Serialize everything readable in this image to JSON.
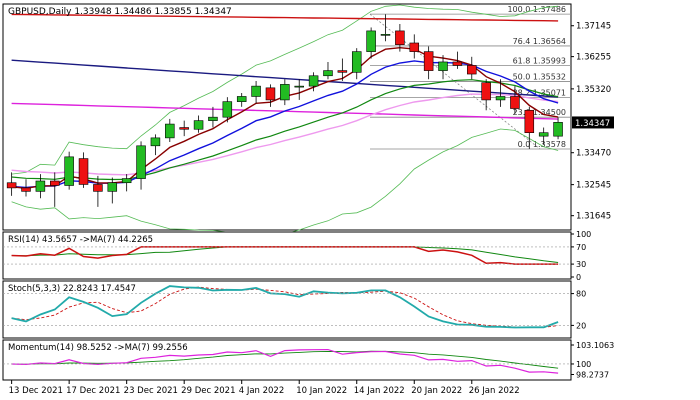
{
  "chart_data": {
    "type": "candlestick",
    "symbol_title": "GBPUSD,Daily",
    "ohlc_header": "1.33948 1.34486 1.33855 1.34347",
    "last_price_label": "1.34347",
    "x_labels": [
      "13 Dec 2021",
      "17 Dec 2021",
      "23 Dec 2021",
      "29 Dec 2021",
      "4 Jan 2022",
      "10 Jan 2022",
      "14 Jan 2022",
      "20 Jan 2022",
      "26 Jan 2022"
    ],
    "price_axis": {
      "ylim": [
        1.3123,
        1.3778
      ],
      "ticks": [
        {
          "v": 1.3715,
          "label": "1.37145"
        },
        {
          "v": 1.36255,
          "label": "1.36255"
        },
        {
          "v": 1.3532,
          "label": "1.35320"
        },
        {
          "v": 1.34347,
          "label": "1.34347"
        },
        {
          "v": 1.3347,
          "label": "1.33470"
        },
        {
          "v": 1.32545,
          "label": "1.32545"
        },
        {
          "v": 1.31645,
          "label": "1.31645"
        }
      ]
    },
    "fibonacci": [
      {
        "v": 1.37486,
        "label": "100.0 1.37486"
      },
      {
        "v": 1.36564,
        "label": "76.4 1.36564"
      },
      {
        "v": 1.35993,
        "label": "61.8 1.35993"
      },
      {
        "v": 1.35532,
        "label": "50.0 1.35532"
      },
      {
        "v": 1.35071,
        "label": "38.2 1.35071"
      },
      {
        "v": 1.345,
        "label": "23.6 1.34500"
      },
      {
        "v": 1.33578,
        "label": "0.0 1.33578"
      }
    ],
    "candles": [
      [
        1.326,
        1.329,
        1.3222,
        1.3245
      ],
      [
        1.3245,
        1.327,
        1.322,
        1.3235
      ],
      [
        1.3235,
        1.3285,
        1.3215,
        1.3265
      ],
      [
        1.3265,
        1.329,
        1.319,
        1.3252
      ],
      [
        1.3252,
        1.335,
        1.324,
        1.3335
      ],
      [
        1.333,
        1.3348,
        1.3245,
        1.3255
      ],
      [
        1.3255,
        1.328,
        1.319,
        1.3235
      ],
      [
        1.3235,
        1.3275,
        1.32,
        1.326
      ],
      [
        1.326,
        1.3285,
        1.3235,
        1.3272
      ],
      [
        1.3272,
        1.338,
        1.324,
        1.3367
      ],
      [
        1.3367,
        1.34,
        1.334,
        1.339
      ],
      [
        1.339,
        1.3445,
        1.3378,
        1.343
      ],
      [
        1.342,
        1.344,
        1.3395,
        1.3415
      ],
      [
        1.3415,
        1.3455,
        1.3405,
        1.344
      ],
      [
        1.344,
        1.348,
        1.342,
        1.345
      ],
      [
        1.345,
        1.3508,
        1.3435,
        1.3495
      ],
      [
        1.3495,
        1.352,
        1.348,
        1.351
      ],
      [
        1.351,
        1.3555,
        1.349,
        1.354
      ],
      [
        1.3535,
        1.3545,
        1.348,
        1.35
      ],
      [
        1.35,
        1.356,
        1.3485,
        1.3545
      ],
      [
        1.354,
        1.356,
        1.35,
        1.354
      ],
      [
        1.354,
        1.358,
        1.3525,
        1.357
      ],
      [
        1.357,
        1.361,
        1.356,
        1.3585
      ],
      [
        1.3585,
        1.362,
        1.3555,
        1.358
      ],
      [
        1.358,
        1.365,
        1.356,
        1.364
      ],
      [
        1.364,
        1.371,
        1.362,
        1.37
      ],
      [
        1.369,
        1.3748,
        1.367,
        1.369
      ],
      [
        1.37,
        1.372,
        1.364,
        1.366
      ],
      [
        1.3665,
        1.369,
        1.362,
        1.364
      ],
      [
        1.364,
        1.3655,
        1.356,
        1.3585
      ],
      [
        1.3585,
        1.363,
        1.356,
        1.361
      ],
      [
        1.361,
        1.364,
        1.359,
        1.36
      ],
      [
        1.36,
        1.3625,
        1.356,
        1.3575
      ],
      [
        1.355,
        1.356,
        1.347,
        1.35
      ],
      [
        1.35,
        1.356,
        1.348,
        1.351
      ],
      [
        1.351,
        1.354,
        1.346,
        1.3475
      ],
      [
        1.347,
        1.348,
        1.3358,
        1.3405
      ],
      [
        1.3395,
        1.342,
        1.337,
        1.3405
      ],
      [
        1.3395,
        1.3449,
        1.3386,
        1.3435
      ]
    ]
  },
  "rsi": {
    "label": "RSI(14) 43.5657 ->MA(7) 44.2265",
    "ticks": [
      {
        "v": 100,
        "label": "100"
      },
      {
        "v": 70,
        "label": "70"
      },
      {
        "v": 30,
        "label": "30"
      },
      {
        "v": 0,
        "label": "0"
      }
    ]
  },
  "stoch": {
    "label": "Stoch(5,3,3) 22.8243 17.4547",
    "ticks": [
      {
        "v": 80,
        "label": "80"
      },
      {
        "v": 20,
        "label": "20"
      }
    ]
  },
  "momentum": {
    "label": "Momentum(14) 98.5252 ->MA(7) 99.2556",
    "ticks": [
      {
        "v": 103.1063,
        "label": "103.1063"
      },
      {
        "v": 100,
        "label": "100"
      },
      {
        "v": 98.2737,
        "label": "98.2737"
      }
    ]
  },
  "colors": {
    "bull": "#22bb22",
    "bear": "#ee1111",
    "sma200": "#cc1111",
    "ema55": "#1a1a80",
    "pinkMA": "#dd22dd",
    "lightPink": "#ee99ee",
    "boll": "#55bb55",
    "ema20": "#118811",
    "blueMA": "#1111dd",
    "darkred": "#880000",
    "fib": "#888888",
    "rsiLine": "#cc1111",
    "rsiMA": "#118811",
    "stochMain": "#22aaaa",
    "stochSig": "#cc1111",
    "mom": "#dd22dd",
    "momMA": "#118811"
  }
}
